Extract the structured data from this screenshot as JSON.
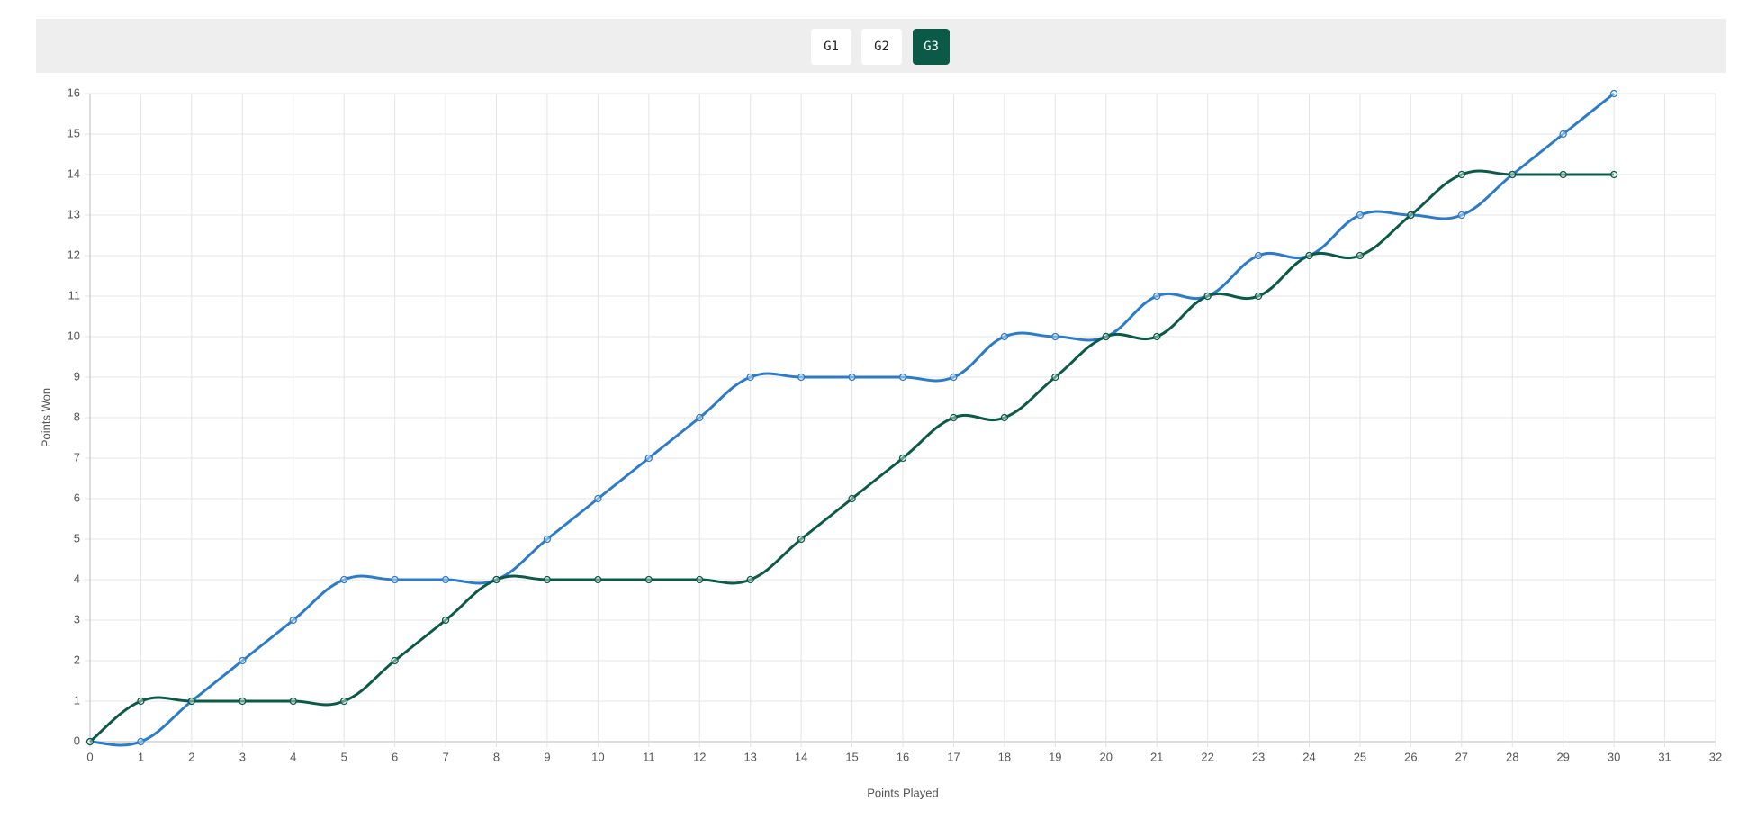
{
  "toolbar": {
    "buttons": [
      {
        "label": "G1",
        "active": false
      },
      {
        "label": "G2",
        "active": false
      },
      {
        "label": "G3",
        "active": true
      }
    ]
  },
  "chart_data": {
    "type": "line",
    "smooth": true,
    "grid": true,
    "x_label": "Points Played",
    "y_label": "Points Won",
    "x": [
      0,
      1,
      2,
      3,
      4,
      5,
      6,
      7,
      8,
      9,
      10,
      11,
      12,
      13,
      14,
      15,
      16,
      17,
      18,
      19,
      20,
      21,
      22,
      23,
      24,
      25,
      26,
      27,
      28,
      29,
      30
    ],
    "series": [
      {
        "color": "#2b7bca",
        "values": [
          0,
          0,
          1,
          2,
          3,
          4,
          4,
          4,
          4,
          5,
          6,
          7,
          8,
          9,
          9,
          9,
          9,
          9,
          10,
          10,
          10,
          11,
          11,
          12,
          12,
          13,
          13,
          13,
          14,
          15,
          16
        ]
      },
      {
        "color": "#0b5a47",
        "values": [
          0,
          1,
          1,
          1,
          1,
          1,
          2,
          3,
          4,
          4,
          4,
          4,
          4,
          4,
          5,
          6,
          7,
          8,
          8,
          9,
          10,
          10,
          11,
          11,
          12,
          12,
          13,
          14,
          14,
          14,
          14
        ]
      }
    ],
    "xlim": [
      0,
      32
    ],
    "xticks": [
      0,
      1,
      2,
      3,
      4,
      5,
      6,
      7,
      8,
      9,
      10,
      11,
      12,
      13,
      14,
      15,
      16,
      17,
      18,
      19,
      20,
      21,
      22,
      23,
      24,
      25,
      26,
      27,
      28,
      29,
      30,
      31,
      32
    ],
    "ylim": [
      0,
      16
    ],
    "yticks": [
      0,
      1,
      2,
      3,
      4,
      5,
      6,
      7,
      8,
      9,
      10,
      11,
      12,
      13,
      14,
      15,
      16
    ]
  }
}
